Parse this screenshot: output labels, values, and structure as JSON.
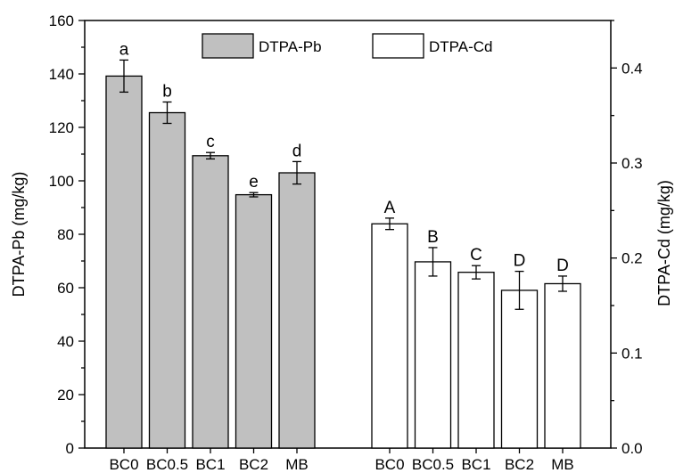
{
  "chart_data": {
    "type": "bar",
    "title": "",
    "groups": [
      {
        "name": "DTPA-Pb",
        "axis": "left",
        "fill": "#c0c0c0",
        "categories": [
          "BC0",
          "BC0.5",
          "BC1",
          "BC2",
          "MB"
        ],
        "values": [
          139.2,
          125.5,
          109.4,
          94.8,
          103.0
        ],
        "errors": [
          6.0,
          4.0,
          1.2,
          0.8,
          4.2
        ],
        "labels": [
          "a",
          "b",
          "c",
          "e",
          "d"
        ]
      },
      {
        "name": "DTPA-Cd",
        "axis": "right",
        "fill": "#ffffff",
        "categories": [
          "BC0",
          "BC0.5",
          "BC1",
          "BC2",
          "MB"
        ],
        "values": [
          0.236,
          0.196,
          0.185,
          0.166,
          0.173
        ],
        "errors": [
          0.006,
          0.015,
          0.007,
          0.02,
          0.008
        ],
        "labels": [
          "A",
          "B",
          "C",
          "D",
          "D"
        ]
      }
    ],
    "y_left": {
      "label": "DTPA-Pb (mg/kg)",
      "range": [
        0,
        160
      ],
      "ticks": [
        0,
        20,
        40,
        60,
        80,
        100,
        120,
        140,
        160
      ]
    },
    "y_right": {
      "label": "DTPA-Cd (mg/kg)",
      "range": [
        0,
        0.45
      ],
      "ticks": [
        "0.0",
        "0.1",
        "0.2",
        "0.3",
        "0.4"
      ]
    },
    "legend": {
      "placement": "top-center",
      "entries": [
        {
          "label": "DTPA-Pb",
          "fill": "#c0c0c0"
        },
        {
          "label": "DTPA-Cd",
          "fill": "#ffffff"
        }
      ]
    },
    "grid": false
  }
}
